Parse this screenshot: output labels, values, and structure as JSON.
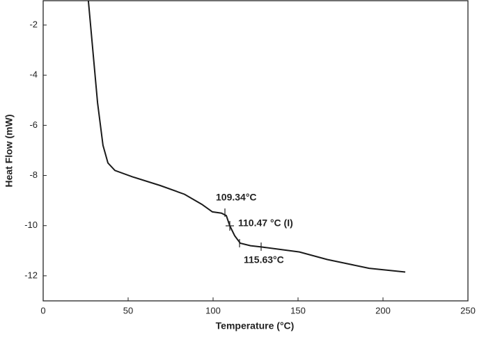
{
  "chart_data": {
    "type": "line",
    "xlabel": "Temperature (°C)",
    "ylabel": "Heat Flow (mW)",
    "x": [
      26.6,
      32,
      35.2,
      38.1,
      42.2,
      52.5,
      68.9,
      83.2,
      93.4,
      99.6,
      104.9,
      107.8,
      109.8,
      112.7,
      116,
      122,
      128.3,
      150.8,
      167.2,
      191.8,
      213.1
    ],
    "series": [
      {
        "color": "#1a1a1a",
        "values": [
          -1.03,
          -5.1,
          -6.8,
          -7.5,
          -7.8,
          -8.05,
          -8.4,
          -8.75,
          -9.15,
          -9.45,
          -9.5,
          -9.6,
          -10.0,
          -10.4,
          -10.7,
          -10.8,
          -10.85,
          -11.05,
          -11.35,
          -11.7,
          -11.85
        ]
      }
    ],
    "xlim": [
      0,
      250
    ],
    "xticks": [
      0,
      50,
      100,
      150,
      200,
      250
    ],
    "ylim": [
      -13,
      -1.03
    ],
    "yticks": [
      -2,
      -4,
      -6,
      -8,
      -10,
      -12
    ],
    "annotations": [
      "109.34°C",
      "110.47 °C (I)",
      "115.63°C"
    ]
  }
}
